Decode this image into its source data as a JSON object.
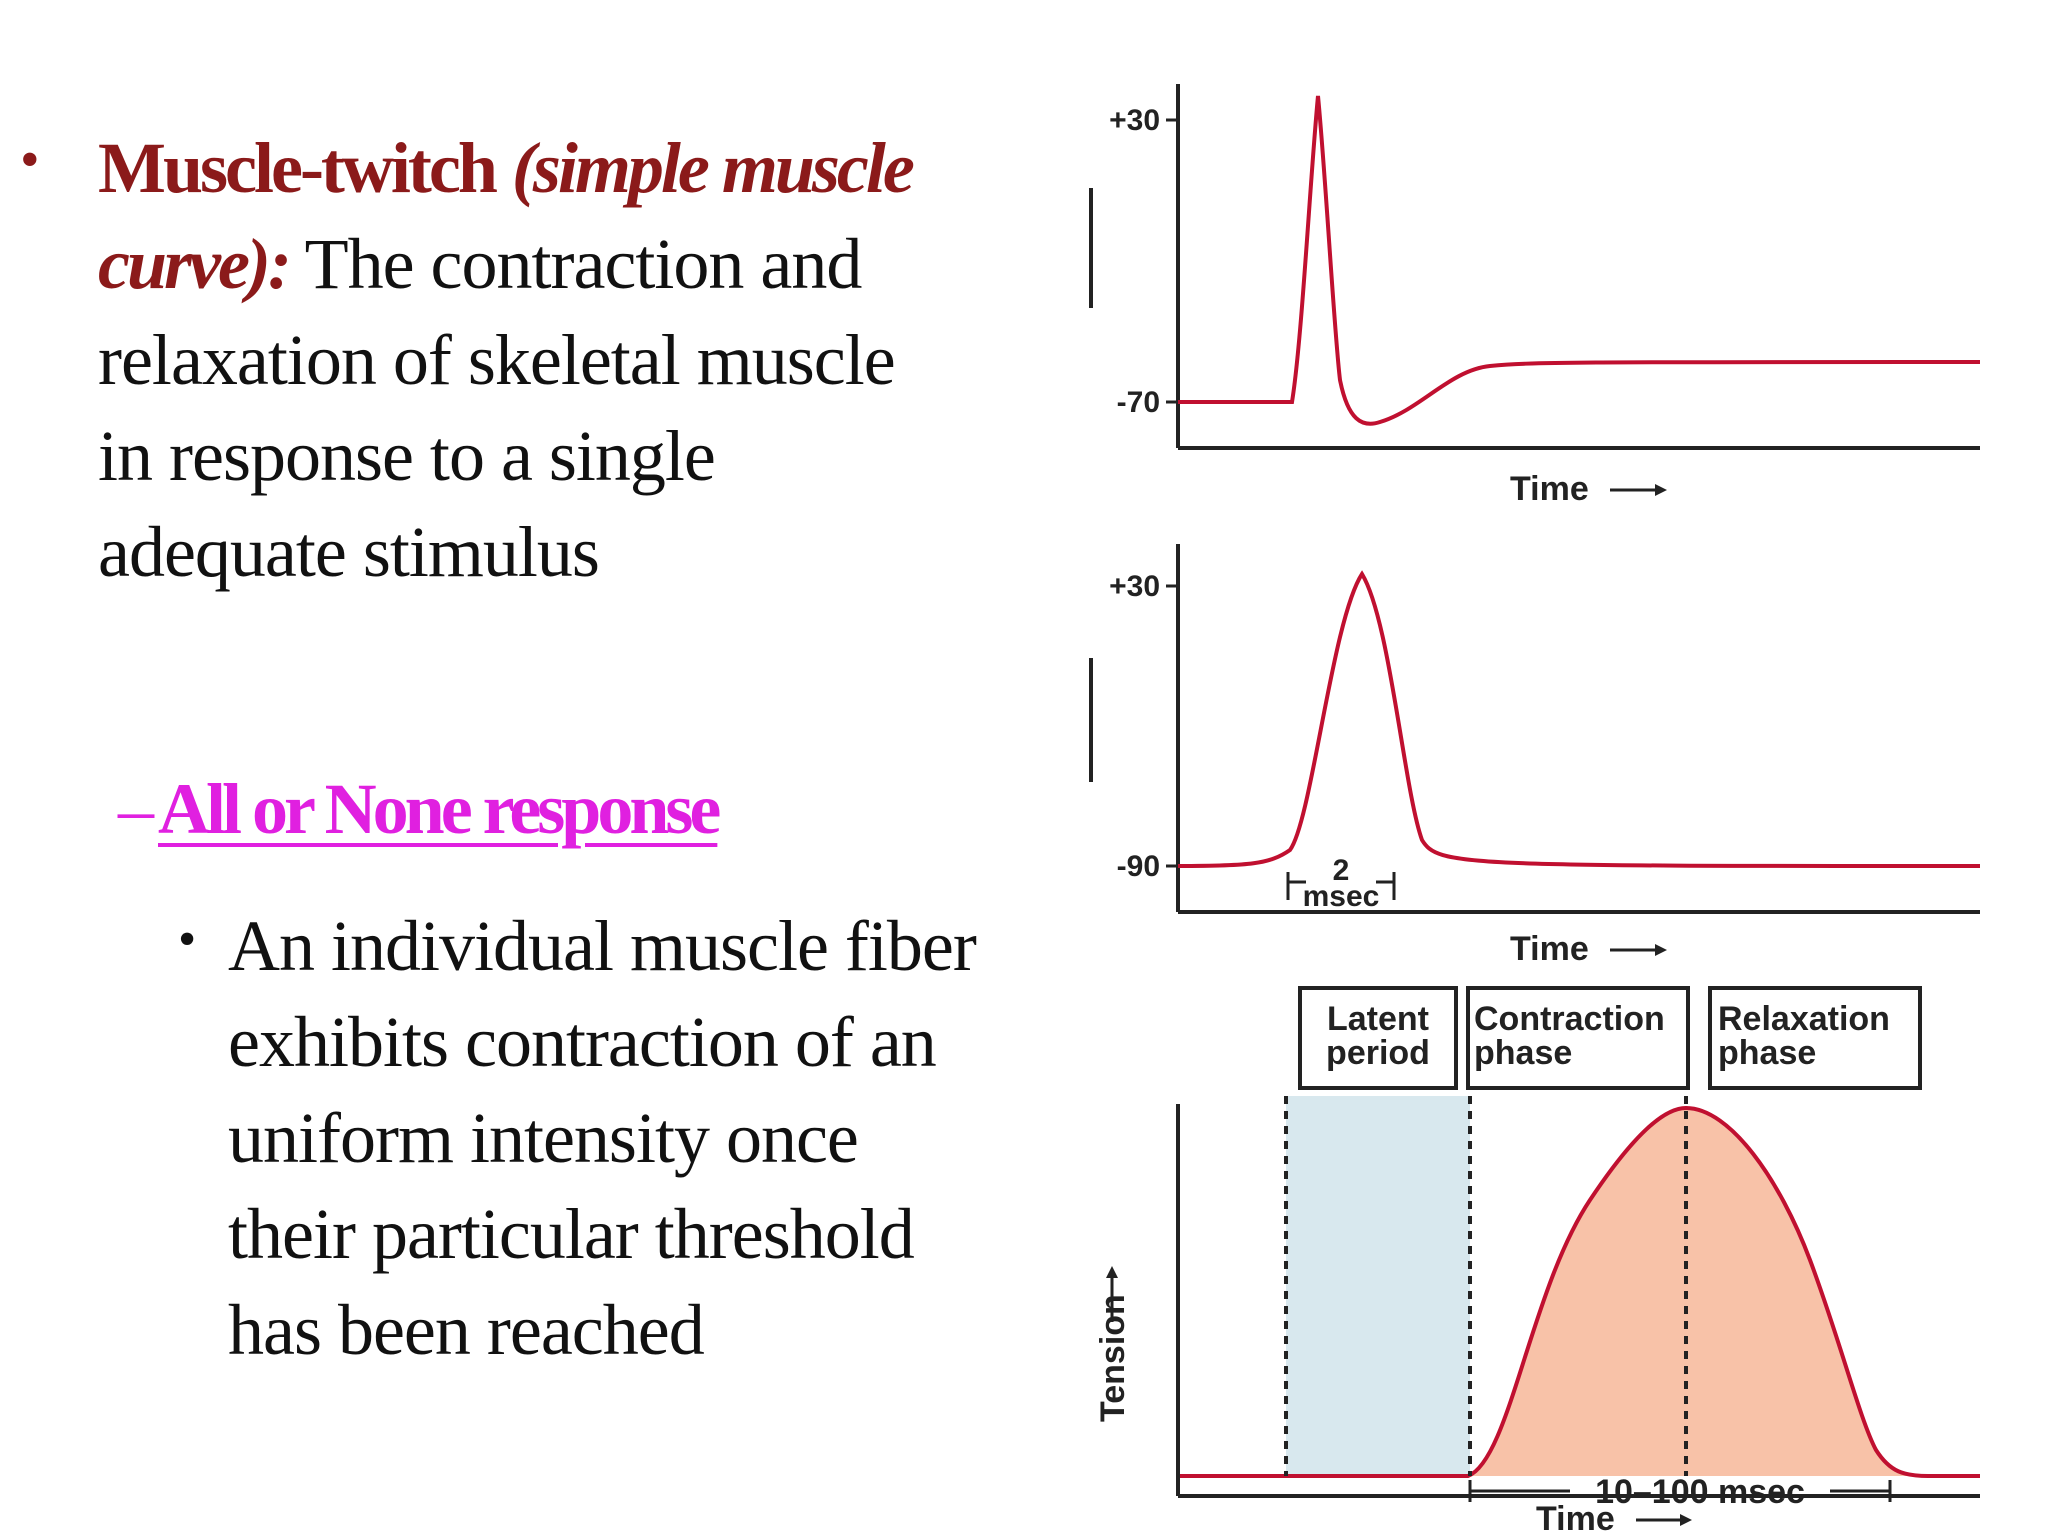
{
  "left_text": {
    "bullet_symbol": "•",
    "term": "Muscle-twitch",
    "term_italic": "(simple muscle curve):",
    "definition": "The contraction and relaxation of skeletal muscle in response to a single adequate stimulus",
    "sub_dash": "–",
    "sub_heading": "All or None response",
    "sub_bullet_symbol": "•",
    "sub_bullet_text": "An individual muscle fiber exhibits contraction of an uniform intensity once their particular threshold has been reached"
  },
  "figure": {
    "colors": {
      "trace": "#c01030",
      "latent_fill": "#d8e8ee",
      "twitch_fill": "#f8c2a8",
      "axis": "#222222"
    },
    "panel1": {
      "ytick_top": "+30",
      "ytick_bottom": "-70",
      "xlabel": "Time"
    },
    "panel2": {
      "ytick_top": "+30",
      "ytick_bottom": "-90",
      "duration_value": "2",
      "duration_unit": "msec",
      "xlabel": "Time"
    },
    "panel3": {
      "box_latent": [
        "Latent",
        "period"
      ],
      "box_contraction": [
        "Contraction",
        "phase"
      ],
      "box_relaxation": [
        "Relaxation",
        "phase"
      ],
      "ylabel": "Tension",
      "duration": "10–100 msec",
      "xlabel": "Time"
    }
  }
}
